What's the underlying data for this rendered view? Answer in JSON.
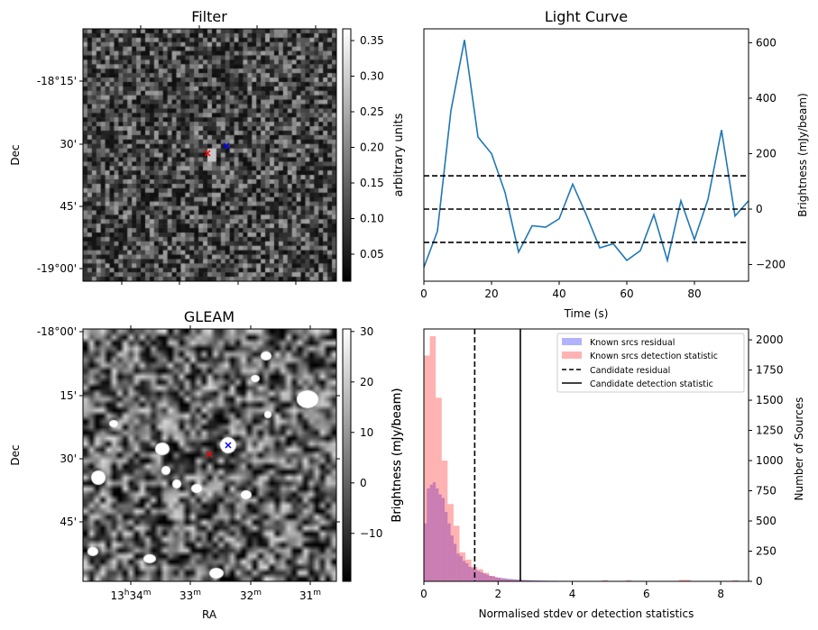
{
  "chart_data": [
    {
      "type": "heatmap",
      "title": "Filter",
      "ylabel": "Dec",
      "yticks": [
        "-18°15'",
        "30'",
        "45'",
        "-19°00'"
      ],
      "colorbar": {
        "label": "arbitrary units",
        "ticks": [
          "0.05",
          "0.10",
          "0.15",
          "0.20",
          "0.25",
          "0.30",
          "0.35"
        ],
        "range": [
          0.01,
          0.365
        ],
        "cmap": "gray"
      },
      "markers": [
        {
          "color": "#ff0000",
          "symbol": "x"
        },
        {
          "color": "#0000ff",
          "symbol": "x"
        }
      ]
    },
    {
      "type": "line",
      "title": "Light Curve",
      "xlabel": "Time (s)",
      "ylabel": "Brightness (mJy/beam)",
      "xlim": [
        0,
        96
      ],
      "ylim": [
        -260,
        650
      ],
      "xticks": [
        0,
        20,
        40,
        60,
        80
      ],
      "yticks": [
        -200,
        0,
        200,
        400,
        600
      ],
      "series": [
        {
          "name": "light curve",
          "color": "#1f77b4",
          "x": [
            0,
            4,
            8,
            12,
            16,
            20,
            24,
            28,
            32,
            36,
            40,
            44,
            48,
            52,
            56,
            60,
            64,
            68,
            72,
            76,
            80,
            84,
            88,
            92,
            96
          ],
          "y": [
            -210,
            -80,
            355,
            610,
            260,
            200,
            60,
            -155,
            -60,
            -65,
            -35,
            90,
            -20,
            -140,
            -125,
            -185,
            -150,
            -20,
            -185,
            30,
            -110,
            35,
            285,
            -25,
            30
          ]
        }
      ],
      "hlines": [
        {
          "y": 120,
          "style": "dashed"
        },
        {
          "y": 0,
          "style": "dashed"
        },
        {
          "y": -120,
          "style": "dashed"
        }
      ]
    },
    {
      "type": "heatmap",
      "title": "GLEAM",
      "xlabel": "RA",
      "ylabel": "Dec",
      "xticks": [
        "13h34m",
        "33m",
        "32m",
        "31m"
      ],
      "yticks": [
        "-18°00'",
        "15'",
        "30'",
        "45'"
      ],
      "colorbar": {
        "label": "Brightness (mJy/beam)",
        "ticks": [
          "−10",
          "0",
          "10",
          "20",
          "30"
        ],
        "range": [
          -19.5,
          30.5
        ],
        "cmap": "gray"
      },
      "markers": [
        {
          "color": "#ff0000",
          "symbol": "x"
        },
        {
          "color": "#0000ff",
          "symbol": "x"
        }
      ]
    },
    {
      "type": "bar",
      "xlabel": "Normalised stdev or detection statistics",
      "ylabel_left": "Brightness (mJy/beam)",
      "ylabel": "Number of Sources",
      "xlim": [
        0,
        8.75
      ],
      "ylim": [
        0,
        2090
      ],
      "xticks": [
        0,
        2,
        4,
        6,
        8
      ],
      "yticks": [
        0,
        250,
        500,
        750,
        1000,
        1250,
        1500,
        1750,
        2000
      ],
      "legend_position": "top-right",
      "series": [
        {
          "name": "Known srcs residual",
          "color": "#0000ff",
          "bin_start": 0,
          "bin_width": 0.08,
          "values": [
            480,
            770,
            800,
            820,
            770,
            720,
            690,
            575,
            480,
            380,
            310,
            230,
            210,
            170,
            150,
            120,
            110,
            95,
            85,
            75,
            65,
            55,
            45,
            40,
            35,
            30,
            28,
            25,
            22,
            20,
            18,
            16,
            14,
            12,
            11,
            10,
            9,
            8,
            8,
            7,
            6,
            6,
            5,
            5,
            5,
            4,
            4,
            4,
            3,
            3,
            3,
            3,
            3,
            2,
            2,
            2,
            2,
            2,
            2
          ]
        },
        {
          "name": "Known srcs detection statistic",
          "color": "#ff0000",
          "bin_start": 0,
          "bin_width": 0.16,
          "values": [
            1870,
            2030,
            1520,
            1000,
            640,
            460,
            240,
            180,
            120,
            100,
            70,
            45,
            30,
            20,
            15,
            12,
            10,
            8,
            6,
            5,
            4,
            3,
            3,
            2,
            2,
            2,
            2,
            1,
            1,
            1,
            10,
            0,
            0,
            0,
            10,
            0,
            0,
            0,
            0,
            0,
            0,
            0,
            0,
            12,
            12,
            0,
            0,
            0,
            0,
            0,
            0,
            0,
            10
          ]
        }
      ],
      "vlines": [
        {
          "name": "Candidate residual",
          "x": 1.37,
          "style": "dashed"
        },
        {
          "name": "Candidate detection statistic",
          "x": 2.6,
          "style": "solid"
        }
      ]
    }
  ]
}
